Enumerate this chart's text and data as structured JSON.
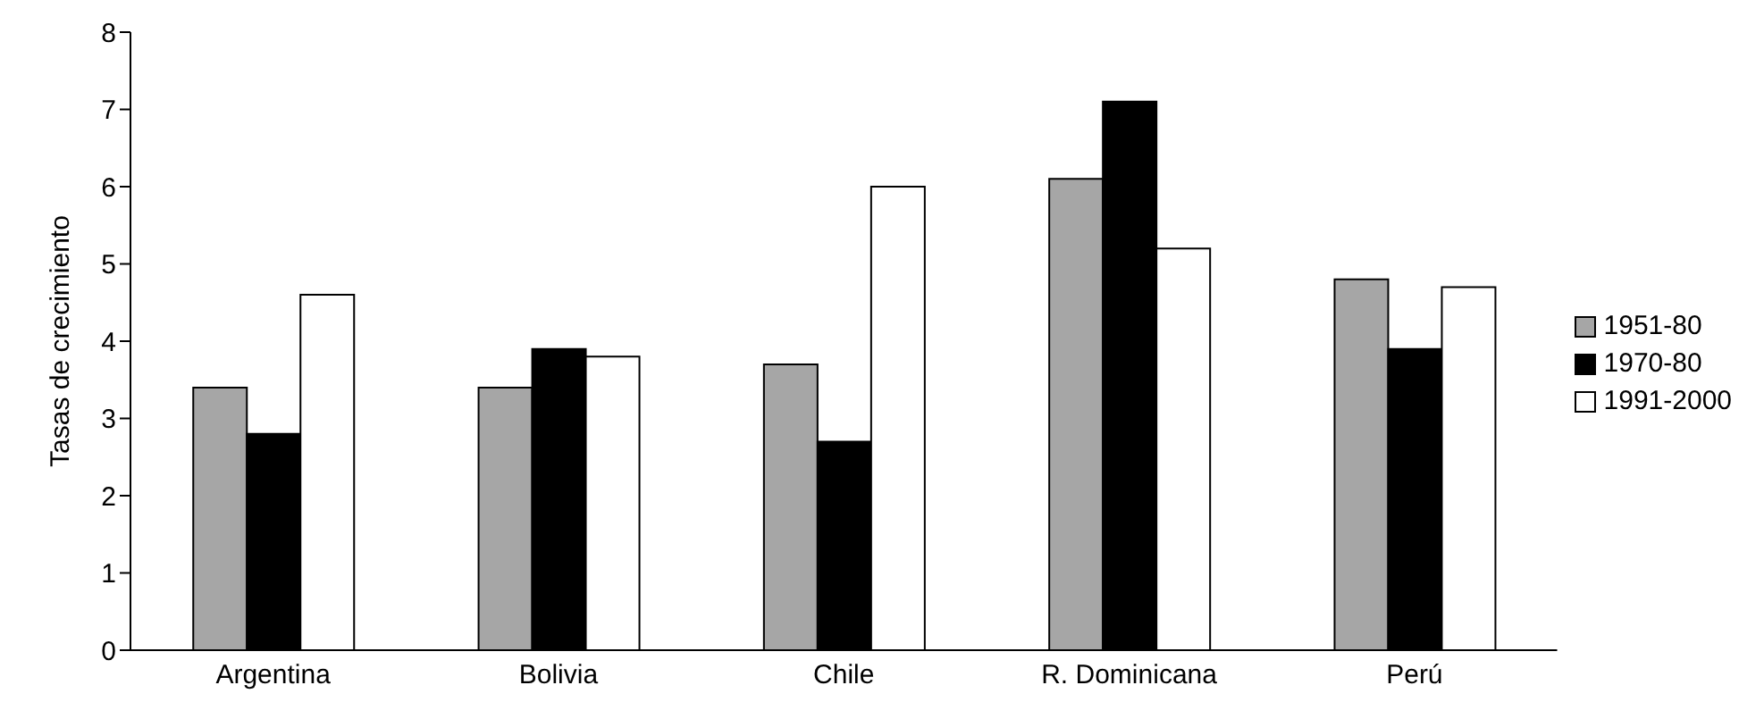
{
  "chart_data": {
    "type": "bar",
    "ylabel": "Tasas de crecimiento",
    "categories": [
      "Argentina",
      "Bolivia",
      "Chile",
      "R. Dominicana",
      "Perú"
    ],
    "series": [
      {
        "name": "1951-80",
        "color": "#a6a6a6",
        "values": [
          3.4,
          3.4,
          3.7,
          6.1,
          4.8
        ]
      },
      {
        "name": "1970-80",
        "color": "#000000",
        "values": [
          2.8,
          3.9,
          2.7,
          7.1,
          3.9
        ]
      },
      {
        "name": "1991-2000",
        "color": "#ffffff",
        "values": [
          4.6,
          3.8,
          6.0,
          5.2,
          4.7
        ]
      }
    ],
    "ylim": [
      0,
      8
    ],
    "yticks": [
      0,
      1,
      2,
      3,
      4,
      5,
      6,
      7,
      8
    ],
    "grid": false,
    "legend": "right"
  }
}
